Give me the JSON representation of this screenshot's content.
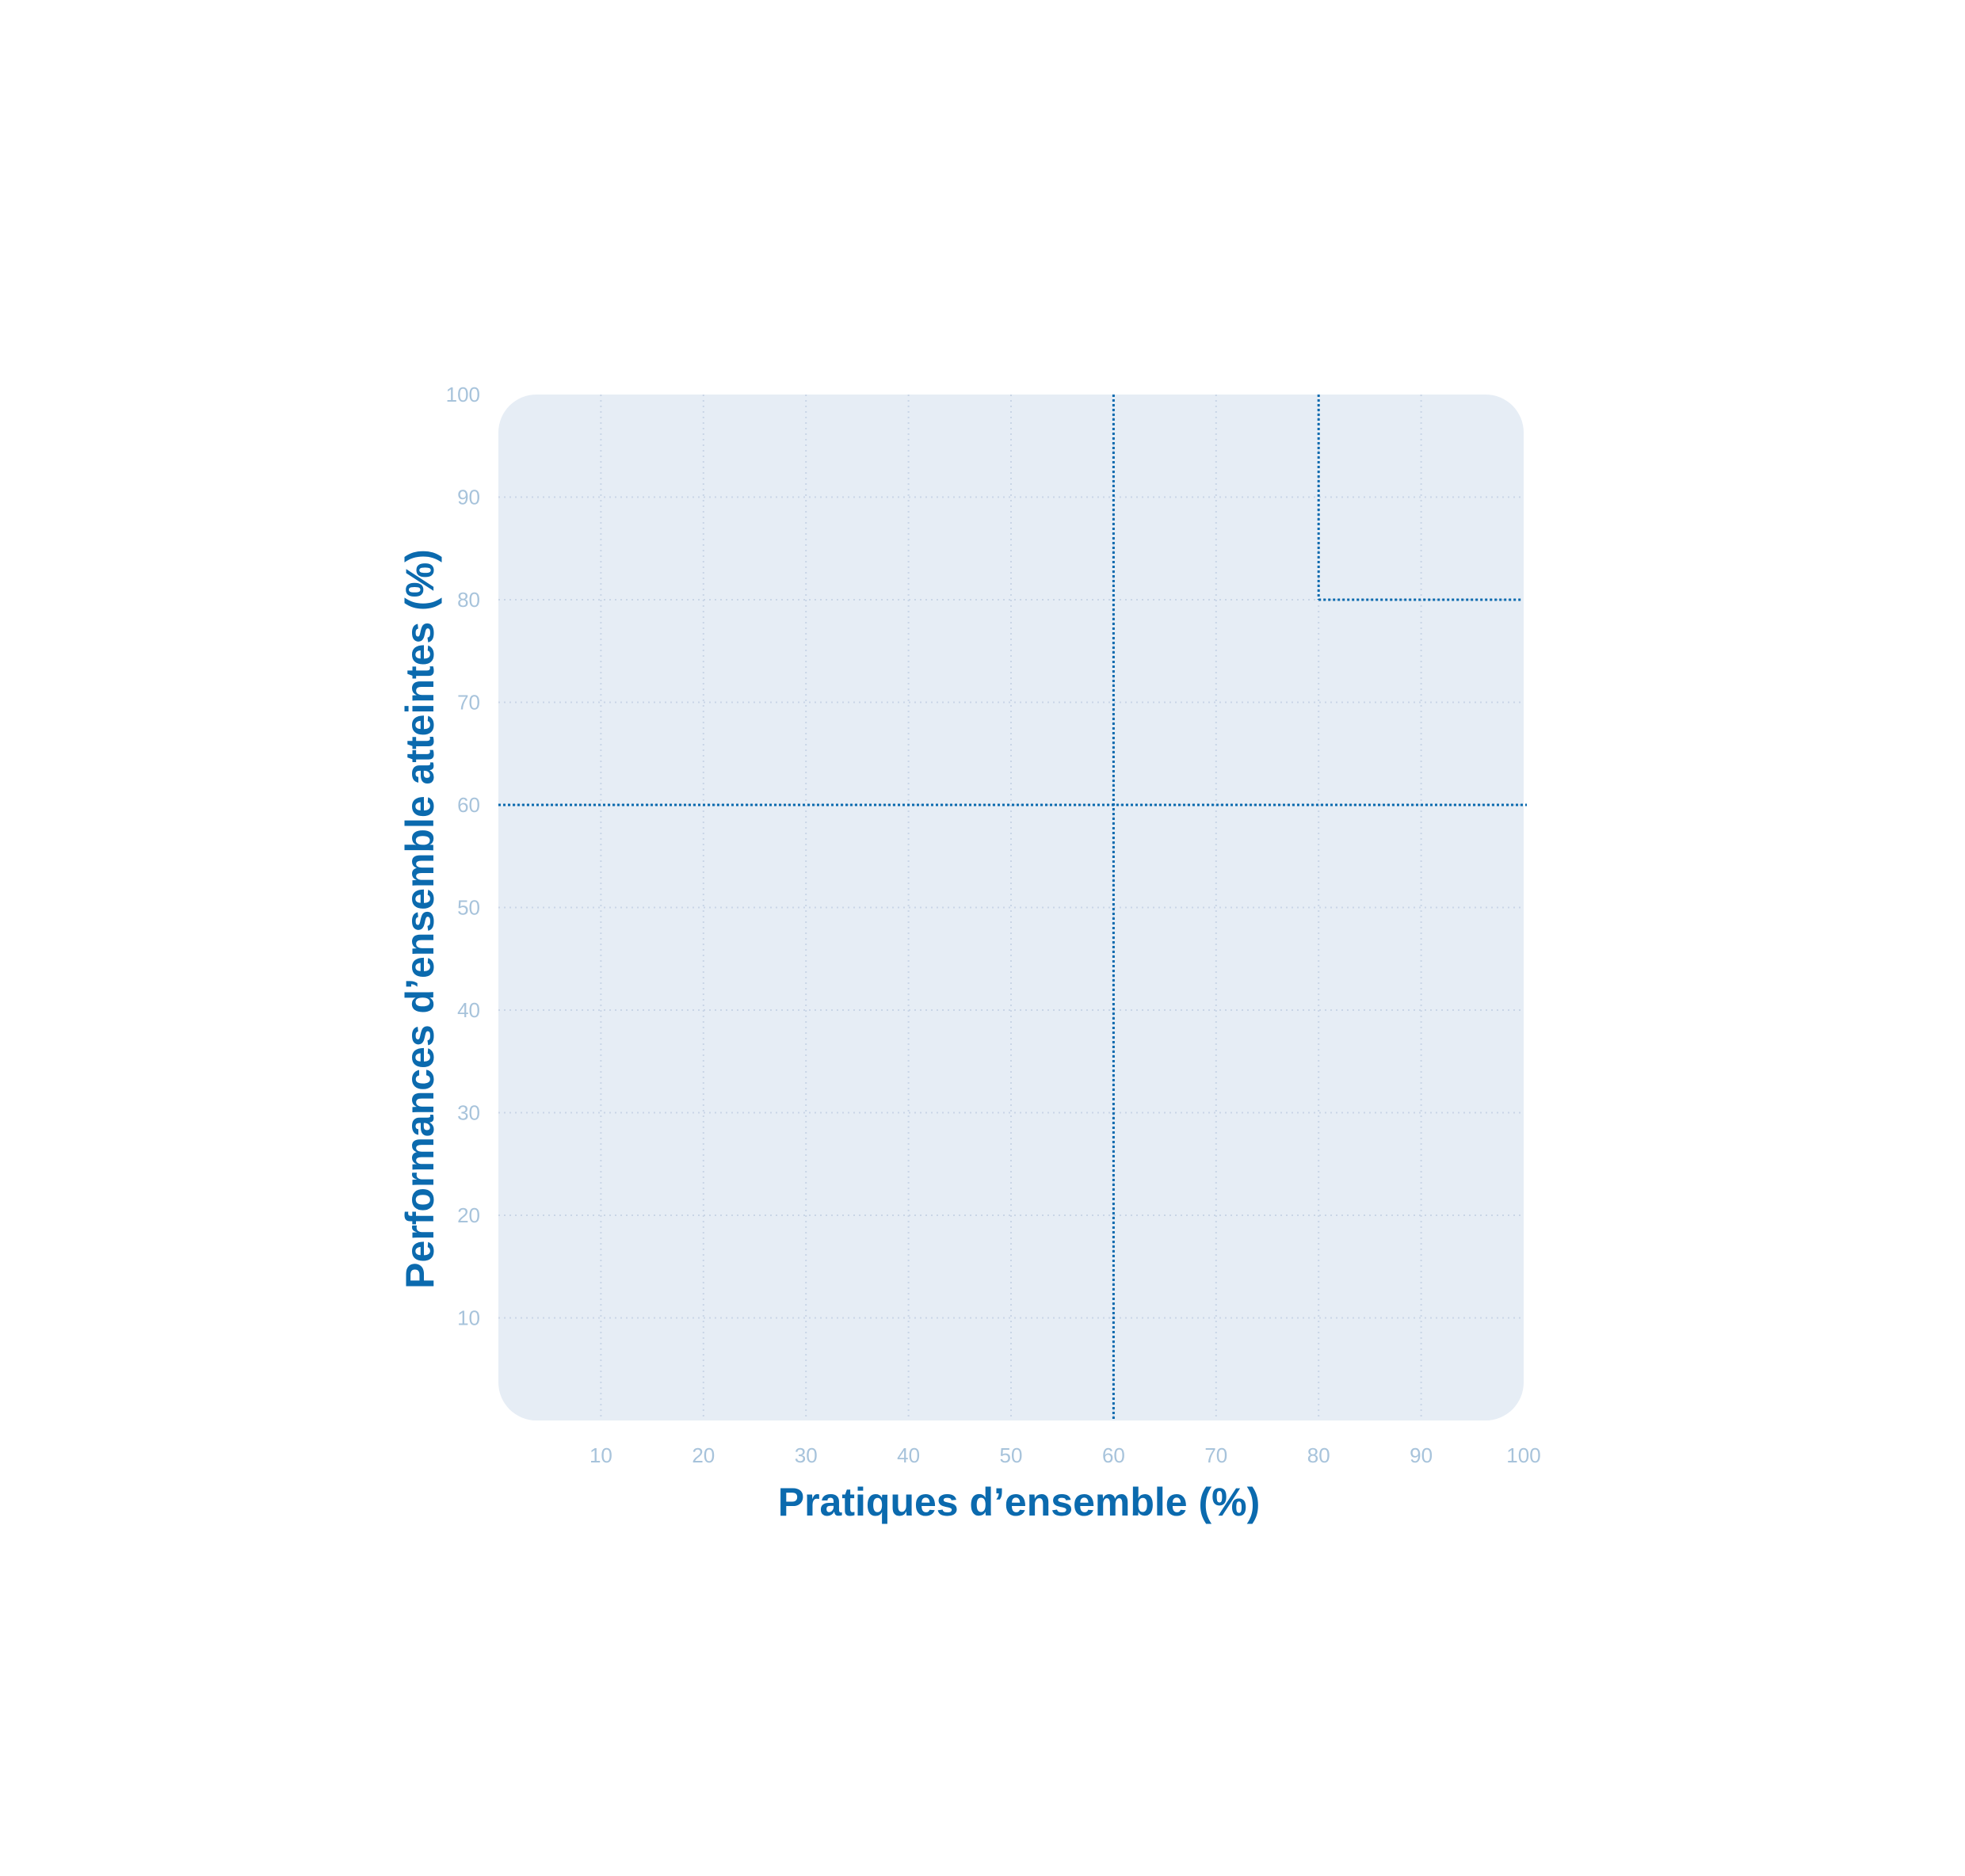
{
  "chart_data": {
    "type": "scatter",
    "xlabel": "Pratiques d’ensemble (%)",
    "ylabel": "Performances d’ensemble atteintes (%)",
    "xlim": [
      0,
      100
    ],
    "ylim": [
      0,
      100
    ],
    "x_ticks": [
      "10",
      "20",
      "30",
      "40",
      "50",
      "60",
      "70",
      "80",
      "90",
      "100"
    ],
    "y_ticks": [
      "10",
      "20",
      "30",
      "40",
      "50",
      "60",
      "70",
      "80",
      "90",
      "100"
    ],
    "grid": true,
    "series": [],
    "reference_lines": [
      {
        "orientation": "vertical",
        "x": 60,
        "y_from": 0,
        "y_to": 100
      },
      {
        "orientation": "horizontal",
        "y": 60,
        "x_from": 0,
        "x_to": 100
      },
      {
        "orientation": "vertical",
        "x": 80,
        "y_from": 80,
        "y_to": 100
      },
      {
        "orientation": "horizontal",
        "y": 80,
        "x_from": 80,
        "x_to": 100
      }
    ],
    "colors": {
      "plot_background": "#e6edf5",
      "grid": "#c9d5e6",
      "reference_line": "#0b6aae",
      "axis_title": "#0b6aae",
      "tick_label": "#a7c3db"
    }
  }
}
